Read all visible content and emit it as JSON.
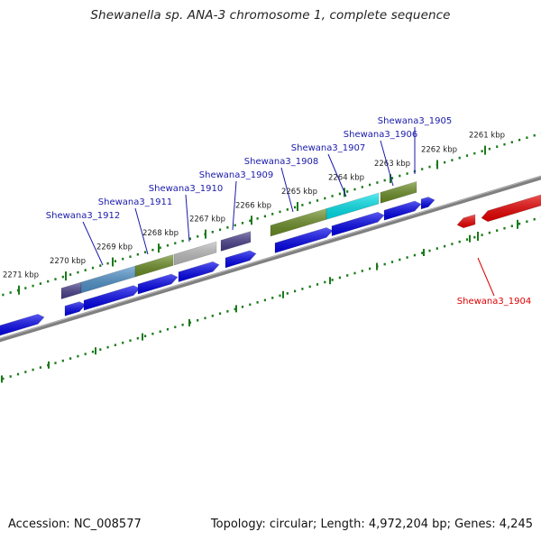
{
  "title": "Shewanella sp. ANA-3 chromosome 1, complete sequence",
  "footer": {
    "accession": "Accession: NC_008577",
    "topology": "Topology: circular; Length: 4,972,204 bp; Genes: 4,245"
  },
  "colors": {
    "tick": "#1a7a1a",
    "backbone": "#808080",
    "forward_gene": "#0000ee",
    "reverse_gene": "#ee0000",
    "label_forward": "#1a1aaa",
    "label_reverse": "#dd0000"
  },
  "kbp_ticks": [
    "2261 kbp",
    "2262 kbp",
    "2263 kbp",
    "2264 kbp",
    "2265 kbp",
    "2266 kbp",
    "2267 kbp",
    "2268 kbp",
    "2269 kbp",
    "2270 kbp",
    "2271 kbp"
  ],
  "gene_labels": [
    {
      "name": "Shewana3_1905",
      "strand": "forward"
    },
    {
      "name": "Shewana3_1906",
      "strand": "forward"
    },
    {
      "name": "Shewana3_1907",
      "strand": "forward"
    },
    {
      "name": "Shewana3_1908",
      "strand": "forward"
    },
    {
      "name": "Shewana3_1909",
      "strand": "forward"
    },
    {
      "name": "Shewana3_1910",
      "strand": "forward"
    },
    {
      "name": "Shewana3_1911",
      "strand": "forward"
    },
    {
      "name": "Shewana3_1912",
      "strand": "forward"
    },
    {
      "name": "Shewana3_1904",
      "strand": "reverse"
    }
  ],
  "feature_colors": {
    "cog_olive": "#6b8e23",
    "cog_cyan": "#00e5ee",
    "cog_slate": "#483d8b",
    "cog_steel": "#4f94cd",
    "cog_grey": "#bebebe"
  }
}
